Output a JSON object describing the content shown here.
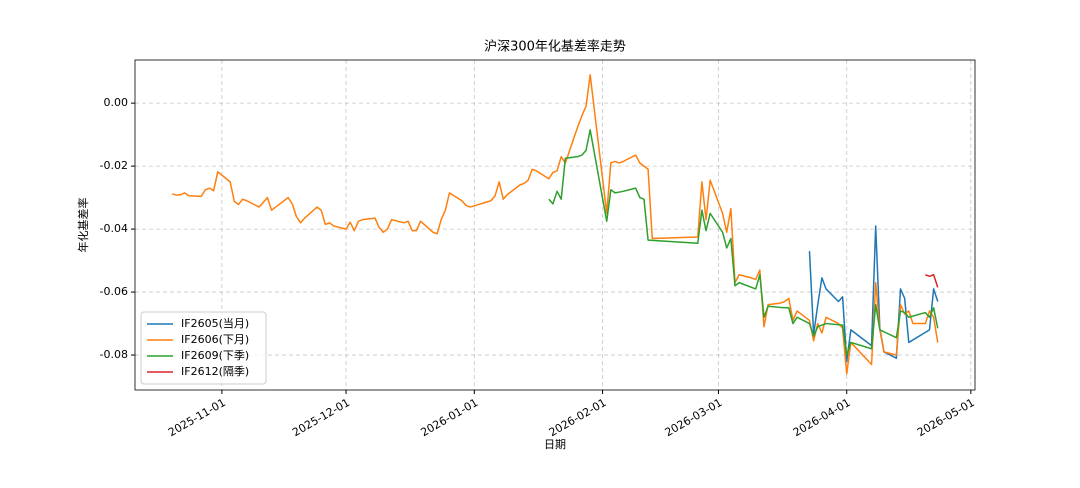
{
  "chart_data": {
    "type": "line",
    "title": "沪深300年化基差率走势",
    "xlabel": "日期",
    "ylabel": "年化基差率",
    "xlim": [
      "2025-10-11",
      "2026-05-02"
    ],
    "ylim": [
      -0.0911,
      0.0137
    ],
    "xticks": [
      "2025-11-01",
      "2025-12-01",
      "2026-01-01",
      "2026-02-01",
      "2026-03-01",
      "2026-04-01",
      "2026-05-01"
    ],
    "yticks": [
      {
        "value": 0,
        "label": "0.00"
      },
      {
        "value": -0.02,
        "label": "-0.02"
      },
      {
        "value": -0.04,
        "label": "-0.04"
      },
      {
        "value": -0.06,
        "label": "-0.06"
      },
      {
        "value": -0.08,
        "label": "-0.08"
      }
    ],
    "grid": true,
    "legend": "lower left",
    "series": [
      {
        "name": "IF2605(当月)",
        "color": "#1f77b4",
        "x": [
          "2026-03-23",
          "2026-03-24",
          "2026-03-25",
          "2026-03-26",
          "2026-03-27",
          "2026-03-30",
          "2026-03-31",
          "2026-04-01",
          "2026-04-02",
          "2026-04-07",
          "2026-04-08",
          "2026-04-09",
          "2026-04-10",
          "2026-04-13",
          "2026-04-14",
          "2026-04-15",
          "2026-04-16",
          "2026-04-21",
          "2026-04-22",
          "2026-04-23"
        ],
        "values": [
          -0.047,
          -0.0735,
          -0.064,
          -0.0555,
          -0.059,
          -0.063,
          -0.0615,
          -0.082,
          -0.072,
          -0.077,
          -0.039,
          -0.0715,
          -0.079,
          -0.081,
          -0.059,
          -0.062,
          -0.076,
          -0.072,
          -0.059,
          -0.063
        ]
      },
      {
        "name": "IF2606(下月)",
        "color": "#ff7f0e",
        "x": [
          "2025-10-20",
          "2025-10-21",
          "2025-10-22",
          "2025-10-23",
          "2025-10-24",
          "2025-10-27",
          "2025-10-28",
          "2025-10-29",
          "2025-10-30",
          "2025-10-31",
          "2025-11-03",
          "2025-11-04",
          "2025-11-05",
          "2025-11-06",
          "2025-11-07",
          "2025-11-10",
          "2025-11-11",
          "2025-11-12",
          "2025-11-13",
          "2025-11-14",
          "2025-11-17",
          "2025-11-18",
          "2025-11-19",
          "2025-11-20",
          "2025-11-21",
          "2025-11-24",
          "2025-11-25",
          "2025-11-26",
          "2025-11-27",
          "2025-11-28",
          "2025-12-01",
          "2025-12-02",
          "2025-12-03",
          "2025-12-04",
          "2025-12-05",
          "2025-12-08",
          "2025-12-09",
          "2025-12-10",
          "2025-12-11",
          "2025-12-12",
          "2025-12-15",
          "2025-12-16",
          "2025-12-17",
          "2025-12-18",
          "2025-12-19",
          "2025-12-22",
          "2025-12-23",
          "2025-12-24",
          "2025-12-25",
          "2025-12-26",
          "2025-12-29",
          "2025-12-30",
          "2025-12-31",
          "2026-01-05",
          "2026-01-06",
          "2026-01-07",
          "2026-01-08",
          "2026-01-09",
          "2026-01-12",
          "2026-01-13",
          "2026-01-14",
          "2026-01-15",
          "2026-01-16",
          "2026-01-19",
          "2026-01-20",
          "2026-01-21",
          "2026-01-22",
          "2026-01-23",
          "2026-01-26",
          "2026-01-27",
          "2026-01-28",
          "2026-01-29",
          "2026-02-02",
          "2026-02-03",
          "2026-02-04",
          "2026-02-05",
          "2026-02-06",
          "2026-02-09",
          "2026-02-10",
          "2026-02-11",
          "2026-02-12",
          "2026-02-13",
          "2026-02-24",
          "2026-02-25",
          "2026-02-26",
          "2026-02-27",
          "2026-03-02",
          "2026-03-03",
          "2026-03-04",
          "2026-03-05",
          "2026-03-06",
          "2026-03-09",
          "2026-03-10",
          "2026-03-11",
          "2026-03-12",
          "2026-03-13",
          "2026-03-16",
          "2026-03-17",
          "2026-03-18",
          "2026-03-19",
          "2026-03-20",
          "2026-03-23",
          "2026-03-24",
          "2026-03-25",
          "2026-03-26",
          "2026-03-27",
          "2026-03-30",
          "2026-03-31",
          "2026-04-01",
          "2026-04-02",
          "2026-04-07",
          "2026-04-08",
          "2026-04-09",
          "2026-04-10",
          "2026-04-13",
          "2026-04-14",
          "2026-04-15",
          "2026-04-16",
          "2026-04-17",
          "2026-04-20",
          "2026-04-21",
          "2026-04-22",
          "2026-04-23"
        ],
        "values": [
          -0.0288,
          -0.0292,
          -0.0291,
          -0.0285,
          -0.0294,
          -0.0296,
          -0.0275,
          -0.027,
          -0.0278,
          -0.0218,
          -0.025,
          -0.0312,
          -0.0322,
          -0.0305,
          -0.031,
          -0.033,
          -0.0315,
          -0.03,
          -0.034,
          -0.033,
          -0.03,
          -0.032,
          -0.036,
          -0.038,
          -0.0365,
          -0.033,
          -0.034,
          -0.0385,
          -0.038,
          -0.039,
          -0.04,
          -0.0378,
          -0.0405,
          -0.0375,
          -0.037,
          -0.0365,
          -0.0395,
          -0.041,
          -0.04,
          -0.037,
          -0.038,
          -0.0375,
          -0.0405,
          -0.0405,
          -0.0375,
          -0.041,
          -0.0415,
          -0.037,
          -0.034,
          -0.0285,
          -0.031,
          -0.0325,
          -0.033,
          -0.031,
          -0.0295,
          -0.025,
          -0.0305,
          -0.029,
          -0.026,
          -0.0255,
          -0.0245,
          -0.021,
          -0.0215,
          -0.024,
          -0.022,
          -0.0215,
          -0.017,
          -0.019,
          -0.0075,
          -0.004,
          -0.001,
          0.009,
          -0.035,
          -0.019,
          -0.0185,
          -0.019,
          -0.0185,
          -0.0165,
          -0.019,
          -0.02,
          -0.021,
          -0.043,
          -0.0425,
          -0.025,
          -0.037,
          -0.0245,
          -0.035,
          -0.041,
          -0.0335,
          -0.057,
          -0.0545,
          -0.0555,
          -0.056,
          -0.053,
          -0.071,
          -0.064,
          -0.0635,
          -0.063,
          -0.062,
          -0.069,
          -0.066,
          -0.069,
          -0.0755,
          -0.07,
          -0.073,
          -0.068,
          -0.07,
          -0.0715,
          -0.086,
          -0.076,
          -0.083,
          -0.057,
          -0.072,
          -0.079,
          -0.08,
          -0.064,
          -0.067,
          -0.066,
          -0.07,
          -0.07,
          -0.066,
          -0.068,
          -0.076
        ]
      },
      {
        "name": "IF2609(下季)",
        "color": "#2ca02c",
        "x": [
          "2026-01-19",
          "2026-01-20",
          "2026-01-21",
          "2026-01-22",
          "2026-01-23",
          "2026-01-26",
          "2026-01-27",
          "2026-01-28",
          "2026-01-29",
          "2026-02-02",
          "2026-02-03",
          "2026-02-04",
          "2026-02-06",
          "2026-02-09",
          "2026-02-10",
          "2026-02-11",
          "2026-02-12",
          "2026-02-24",
          "2026-02-25",
          "2026-02-26",
          "2026-02-27",
          "2026-03-02",
          "2026-03-03",
          "2026-03-04",
          "2026-03-05",
          "2026-03-06",
          "2026-03-10",
          "2026-03-11",
          "2026-03-12",
          "2026-03-13",
          "2026-03-17",
          "2026-03-18",
          "2026-03-19",
          "2026-03-20",
          "2026-03-23",
          "2026-03-24",
          "2026-03-25",
          "2026-03-27",
          "2026-03-31",
          "2026-04-01",
          "2026-04-02",
          "2026-04-07",
          "2026-04-08",
          "2026-04-09",
          "2026-04-13",
          "2026-04-14",
          "2026-04-15",
          "2026-04-16",
          "2026-04-20",
          "2026-04-21",
          "2026-04-22",
          "2026-04-23"
        ],
        "values": [
          -0.0305,
          -0.032,
          -0.028,
          -0.0305,
          -0.0175,
          -0.017,
          -0.0165,
          -0.015,
          -0.0085,
          -0.0375,
          -0.0275,
          -0.0285,
          -0.028,
          -0.027,
          -0.03,
          -0.0305,
          -0.0435,
          -0.0445,
          -0.034,
          -0.0405,
          -0.035,
          -0.041,
          -0.046,
          -0.043,
          -0.058,
          -0.057,
          -0.059,
          -0.0545,
          -0.068,
          -0.0645,
          -0.065,
          -0.065,
          -0.07,
          -0.068,
          -0.07,
          -0.074,
          -0.071,
          -0.07,
          -0.0705,
          -0.08,
          -0.076,
          -0.078,
          -0.064,
          -0.072,
          -0.0745,
          -0.066,
          -0.0665,
          -0.068,
          -0.0665,
          -0.068,
          -0.065,
          -0.0715
        ]
      },
      {
        "name": "IF2612(隔季)",
        "color": "#d62728",
        "x": [
          "2026-04-20",
          "2026-04-21",
          "2026-04-22",
          "2026-04-23"
        ],
        "values": [
          -0.0545,
          -0.055,
          -0.0545,
          -0.0585
        ]
      }
    ]
  }
}
